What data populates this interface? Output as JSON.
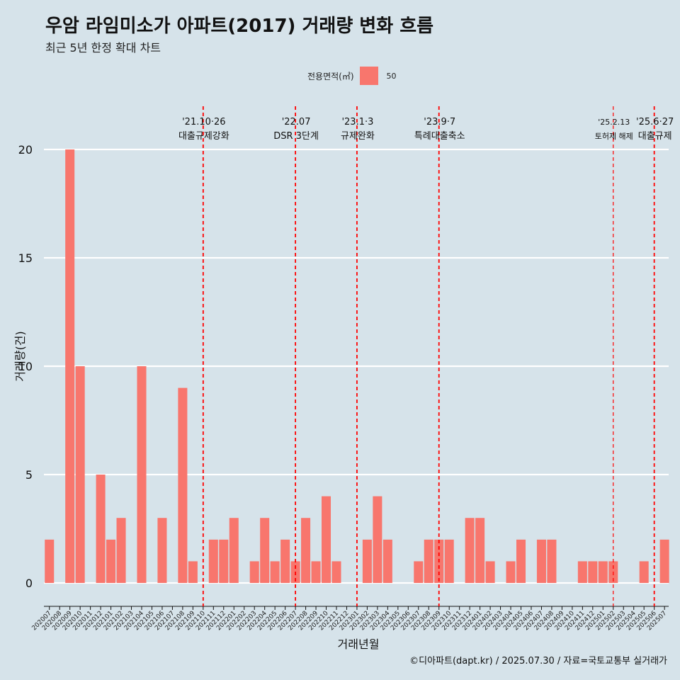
{
  "header": {
    "title": "우암 라임미소가 아파트(2017) 거래량 변화 흐름",
    "subtitle": "최근 5년 한정 확대 차트"
  },
  "legend": {
    "title": "전용면적(㎡)",
    "entries": [
      "50"
    ]
  },
  "caption": "©디아파트(dapt.kr) / 2025.07.30 / 자료=국토교통부 실거래가",
  "colors": {
    "background": "#d6e3ea",
    "bar": "#f8766d",
    "event_line": "#ff0000",
    "grid": "#ffffff"
  },
  "chart_data": {
    "type": "bar",
    "title": "우암 라임미소가 아파트(2017) 거래량 변화 흐름",
    "subtitle": "최근 5년 한정 확대 차트",
    "xlabel": "거래년월",
    "ylabel": "거래량(건)",
    "ylim": [
      0,
      22
    ],
    "yticks": [
      0,
      5,
      10,
      15,
      20
    ],
    "grid": true,
    "legend_position": "top",
    "categories": [
      "202007",
      "202008",
      "202009",
      "202010",
      "202011",
      "202012",
      "202101",
      "202102",
      "202103",
      "202104",
      "202105",
      "202106",
      "202107",
      "202108",
      "202109",
      "202110",
      "202111",
      "202112",
      "202201",
      "202202",
      "202203",
      "202204",
      "202205",
      "202206",
      "202207",
      "202208",
      "202209",
      "202210",
      "202211",
      "202212",
      "202301",
      "202302",
      "202303",
      "202304",
      "202305",
      "202306",
      "202307",
      "202308",
      "202309",
      "202310",
      "202311",
      "202312",
      "202401",
      "202402",
      "202403",
      "202404",
      "202405",
      "202406",
      "202407",
      "202408",
      "202409",
      "202410",
      "202411",
      "202412",
      "202501",
      "202502",
      "202503",
      "202504",
      "202505",
      "202506",
      "202507"
    ],
    "series": [
      {
        "name": "50",
        "values": [
          2,
          0,
          20,
          10,
          0,
          5,
          2,
          3,
          0,
          10,
          0,
          3,
          0,
          9,
          1,
          0,
          2,
          2,
          3,
          0,
          1,
          3,
          1,
          2,
          1,
          3,
          1,
          4,
          1,
          0,
          0,
          2,
          4,
          2,
          0,
          0,
          1,
          2,
          2,
          2,
          0,
          3,
          3,
          1,
          0,
          1,
          2,
          0,
          2,
          2,
          0,
          0,
          1,
          1,
          1,
          1,
          0,
          0,
          1,
          0,
          2
        ]
      }
    ],
    "annotations": [
      {
        "x": "202110",
        "line1": "'21.10·26",
        "line2": "대출규제강화"
      },
      {
        "x": "202207",
        "line1": "'22.07",
        "line2": "DSR 3단계"
      },
      {
        "x": "202301",
        "line1": "'23.1·3",
        "line2": "규제완화"
      },
      {
        "x": "202309",
        "line1": "'23.9·7",
        "line2": "특례대출축소"
      },
      {
        "x": "202502",
        "line1": "'25.2.13",
        "line2": "토허제 해제"
      },
      {
        "x": "202506",
        "line1": "'25.6·27",
        "line2": "대출규제"
      }
    ]
  }
}
